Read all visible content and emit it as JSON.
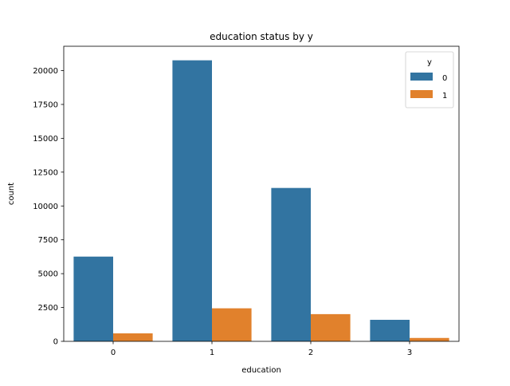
{
  "chart_data": {
    "type": "bar",
    "title": "education status by y",
    "xlabel": "education",
    "ylabel": "count",
    "categories": [
      "0",
      "1",
      "2",
      "3"
    ],
    "series": [
      {
        "name": "0",
        "color": "#3274a1",
        "values": [
          6260,
          20760,
          11330,
          1590
        ]
      },
      {
        "name": "1",
        "color": "#e1812c",
        "values": [
          590,
          2440,
          2010,
          250
        ]
      }
    ],
    "ylim": [
      0,
      21798
    ],
    "yticks": [
      0,
      2500,
      5000,
      7500,
      10000,
      12500,
      15000,
      17500,
      20000
    ],
    "ytick_labels": [
      "0",
      "2500",
      "5000",
      "7500",
      "10000",
      "12500",
      "15000",
      "17500",
      "20000"
    ],
    "legend": {
      "title": "y",
      "placement": "upper-right"
    },
    "grid": false
  }
}
